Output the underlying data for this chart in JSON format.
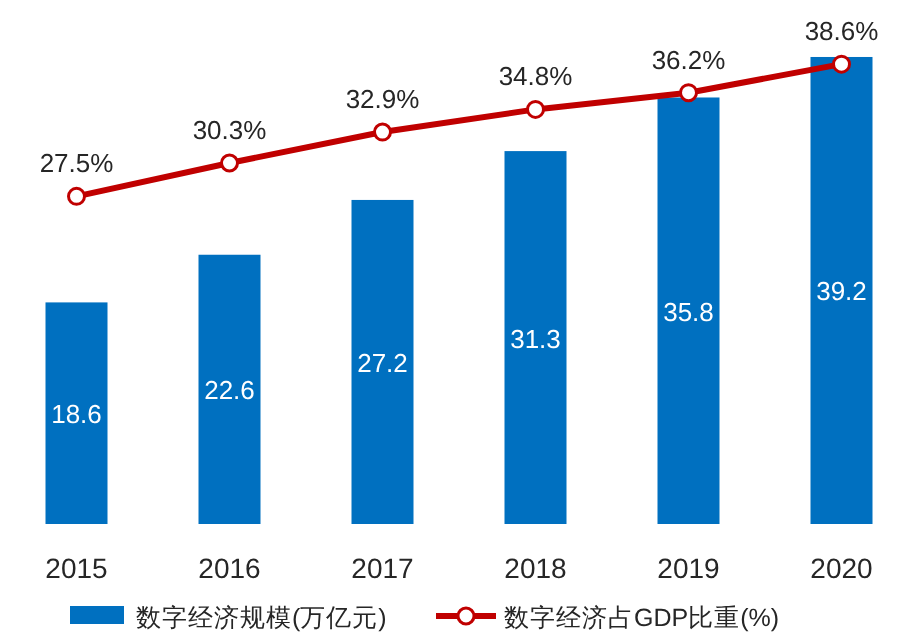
{
  "chart_data": {
    "type": "bar",
    "categories": [
      "2015",
      "2016",
      "2017",
      "2018",
      "2019",
      "2020"
    ],
    "series": [
      {
        "name": "数字经济规模(万亿元)",
        "color": "#0070c0",
        "values": [
          18.6,
          22.6,
          27.2,
          31.3,
          35.8,
          39.2
        ]
      },
      {
        "name": "数字经济占GDP比重(%)",
        "type": "line",
        "color": "#c00000",
        "values": [
          27.5,
          30.3,
          32.9,
          34.8,
          36.2,
          38.6
        ],
        "value_labels": [
          "27.5%",
          "30.3%",
          "32.9%",
          "34.8%",
          "36.2%",
          "38.6%"
        ]
      }
    ],
    "data_labels": true,
    "legend": "bottom",
    "marker": "circle",
    "line_style": "solid",
    "tick_labels": "x"
  }
}
